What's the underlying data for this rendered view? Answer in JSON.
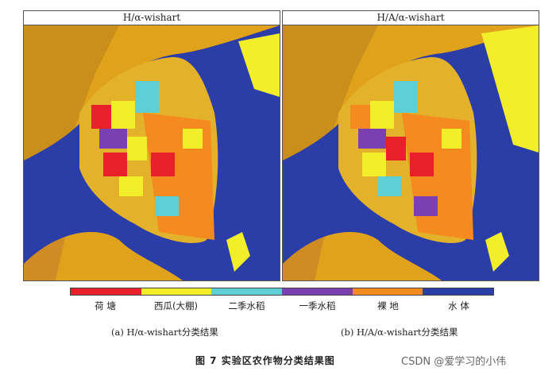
{
  "panels": [
    {
      "title": "H/α-wishart",
      "caption": "(a) H/α-wishart分类结果"
    },
    {
      "title": "H/A/α-wishart",
      "caption": "(b) H/A/α-wishart分类结果"
    }
  ],
  "legend": [
    {
      "label": "荷  塘",
      "color": "#e8202a"
    },
    {
      "label": "西瓜(大棚)",
      "color": "#f2ee2a"
    },
    {
      "label": "二季水稻",
      "color": "#5fcfd6"
    },
    {
      "label": "一季水稻",
      "color": "#7a3fb0"
    },
    {
      "label": "裸  地",
      "color": "#f58a1f"
    },
    {
      "label": "水  体",
      "color": "#2b3ea8"
    }
  ],
  "figure_title": "图 7   实验区农作物分类结果图",
  "watermark": "CSDN @爱学习的小伟"
}
